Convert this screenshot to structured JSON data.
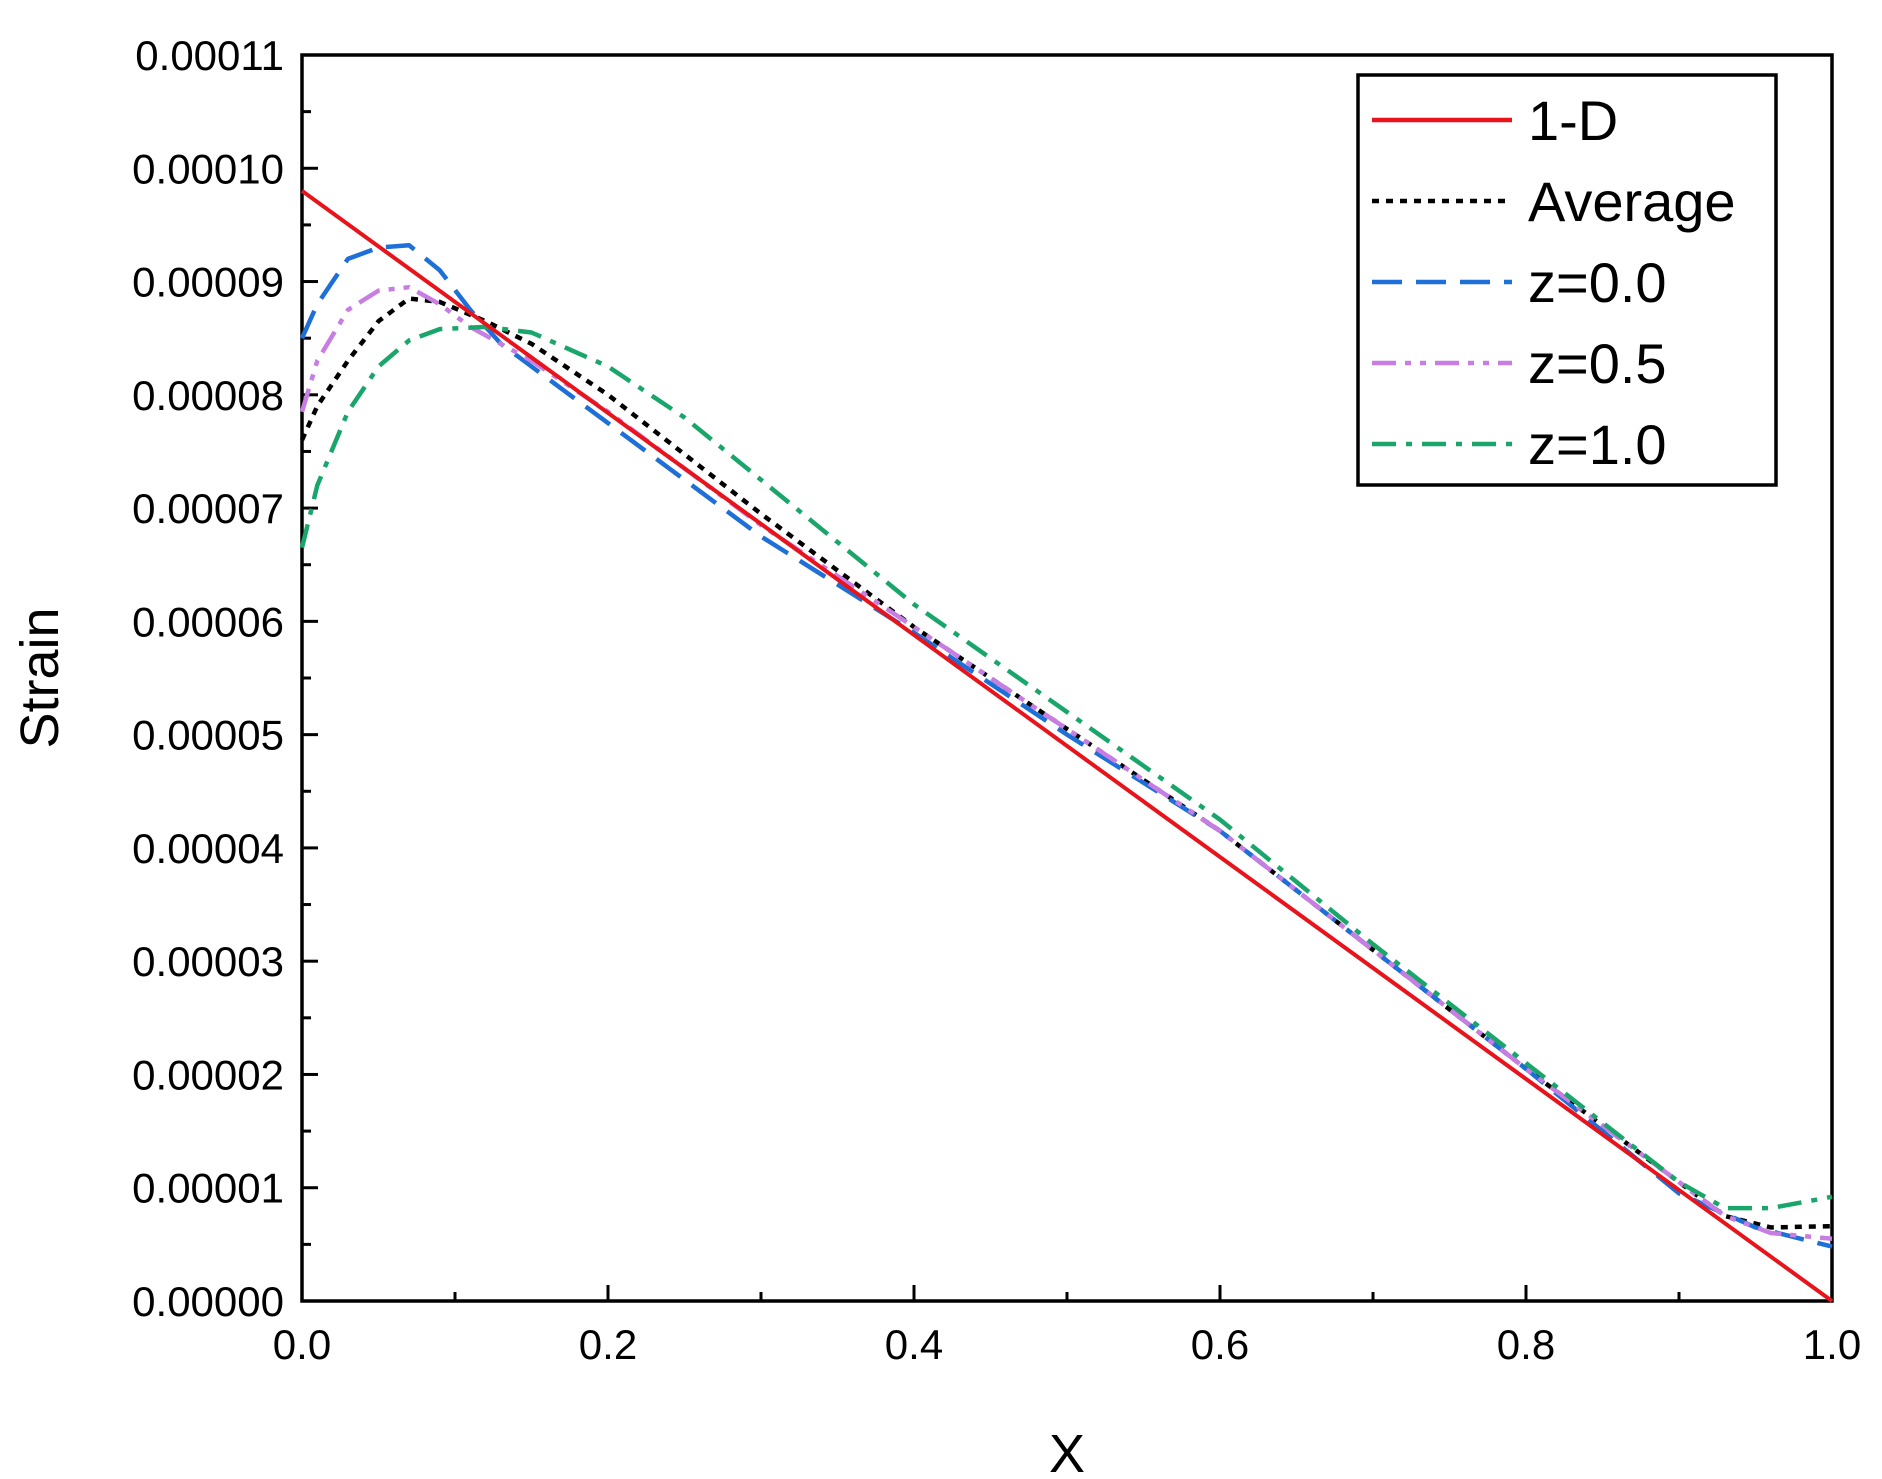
{
  "chart_data": {
    "type": "line",
    "xlabel": "X",
    "ylabel": "Strain",
    "xlim": [
      0.0,
      1.0
    ],
    "ylim": [
      0.0,
      0.00011
    ],
    "x_ticks": [
      "0.0",
      "0.2",
      "0.4",
      "0.6",
      "0.8",
      "1.0"
    ],
    "y_ticks": [
      "0.00000",
      "0.00001",
      "0.00002",
      "0.00003",
      "0.00004",
      "0.00005",
      "0.00006",
      "0.00007",
      "0.00008",
      "0.00009",
      "0.00010",
      "0.00011"
    ],
    "grid": false,
    "legend_position": "top-right",
    "series": [
      {
        "name": "1-D",
        "color": "#e8131b",
        "style": "solid",
        "x": [
          0.0,
          1.0
        ],
        "y": [
          9.8e-05,
          0.0
        ]
      },
      {
        "name": "Average",
        "color": "#000000",
        "style": "dotted",
        "x": [
          0.0,
          0.01,
          0.03,
          0.05,
          0.07,
          0.09,
          0.12,
          0.15,
          0.2,
          0.3,
          0.4,
          0.5,
          0.6,
          0.7,
          0.8,
          0.9,
          0.93,
          0.96,
          1.0
        ],
        "y": [
          7.6e-05,
          7.9e-05,
          8.3e-05,
          8.65e-05,
          8.85e-05,
          8.82e-05,
          8.65e-05,
          8.45e-05,
          8e-05,
          6.95e-05,
          5.95e-05,
          5.05e-05,
          4.15e-05,
          3.1e-05,
          2.05e-05,
          1.05e-05,
          7.5e-06,
          6.5e-06,
          6.6e-06
        ]
      },
      {
        "name": "z=0.0",
        "color": "#1f6fd8",
        "style": "dashed",
        "x": [
          0.0,
          0.01,
          0.03,
          0.05,
          0.07,
          0.09,
          0.11,
          0.13,
          0.15,
          0.2,
          0.25,
          0.3,
          0.4,
          0.5,
          0.6,
          0.7,
          0.8,
          0.9,
          0.95,
          1.0
        ],
        "y": [
          8.5e-05,
          8.8e-05,
          9.2e-05,
          9.3e-05,
          9.32e-05,
          9.1e-05,
          8.75e-05,
          8.45e-05,
          8.25e-05,
          7.75e-05,
          7.25e-05,
          6.75e-05,
          5.9e-05,
          5e-05,
          4.15e-05,
          3.1e-05,
          2.05e-05,
          9.5e-06,
          6.5e-06,
          4.8e-06
        ]
      },
      {
        "name": "z=0.5",
        "color": "#c77de2",
        "style": "dash-dot-dot",
        "x": [
          0.0,
          0.01,
          0.03,
          0.05,
          0.07,
          0.09,
          0.11,
          0.13,
          0.15,
          0.2,
          0.3,
          0.4,
          0.5,
          0.6,
          0.7,
          0.8,
          0.9,
          0.93,
          0.96,
          1.0
        ],
        "y": [
          7.85e-05,
          8.3e-05,
          8.75e-05,
          8.92e-05,
          8.95e-05,
          8.8e-05,
          8.6e-05,
          8.45e-05,
          8.3e-05,
          7.85e-05,
          6.85e-05,
          5.95e-05,
          5.05e-05,
          4.15e-05,
          3.1e-05,
          2.05e-05,
          1.05e-05,
          7.5e-06,
          6e-06,
          5.5e-06
        ]
      },
      {
        "name": "z=1.0",
        "color": "#1aa66a",
        "style": "dash-dot",
        "x": [
          0.0,
          0.01,
          0.03,
          0.05,
          0.07,
          0.09,
          0.12,
          0.15,
          0.2,
          0.25,
          0.3,
          0.4,
          0.5,
          0.6,
          0.7,
          0.8,
          0.9,
          0.93,
          0.96,
          1.0
        ],
        "y": [
          6.65e-05,
          7.2e-05,
          7.85e-05,
          8.25e-05,
          8.48e-05,
          8.58e-05,
          8.6e-05,
          8.55e-05,
          8.25e-05,
          7.8e-05,
          7.25e-05,
          6.15e-05,
          5.2e-05,
          4.25e-05,
          3.15e-05,
          2.1e-05,
          1.05e-05,
          8.2e-06,
          8.2e-06,
          9.2e-06
        ]
      }
    ]
  }
}
